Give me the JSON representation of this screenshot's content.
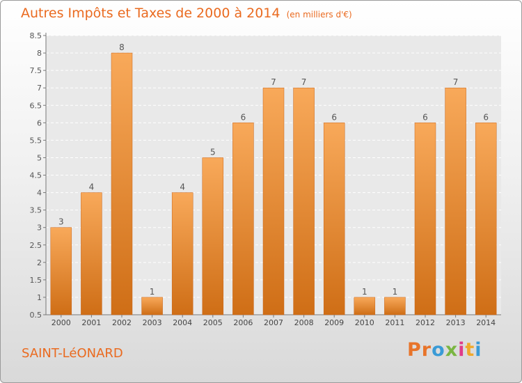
{
  "header": {
    "title": "Autres Impôts et Taxes de 2000 à 2014",
    "subtitle": "(en milliers d'€)"
  },
  "footer": {
    "place": "SAINT-LéONARD",
    "logo_text": "Proxiti"
  },
  "colors": {
    "accent": "#ea6a1f",
    "bar_light": "#f8a95a",
    "bar_dark": "#cf6e16",
    "logo_letters": [
      "#e8742a",
      "#e8742a",
      "#3a9bd6",
      "#7ab642",
      "#e03c8a",
      "#f0a92c",
      "#3a9bd6"
    ]
  },
  "chart_data": {
    "type": "bar",
    "categories": [
      "2000",
      "2001",
      "2002",
      "2003",
      "2004",
      "2005",
      "2006",
      "2007",
      "2008",
      "2009",
      "2010",
      "2011",
      "2012",
      "2013",
      "2014"
    ],
    "values": [
      3,
      4,
      8,
      1,
      4,
      5,
      6,
      7,
      7,
      6,
      1,
      1,
      6,
      7,
      6
    ],
    "ylim": [
      0.5,
      8.5
    ],
    "yticks": [
      "0.5",
      "1",
      "1.5",
      "2",
      "2.5",
      "3",
      "3.5",
      "4",
      "4.5",
      "5",
      "5.5",
      "6",
      "6.5",
      "7",
      "7.5",
      "8",
      "8.5"
    ],
    "grid": true
  }
}
